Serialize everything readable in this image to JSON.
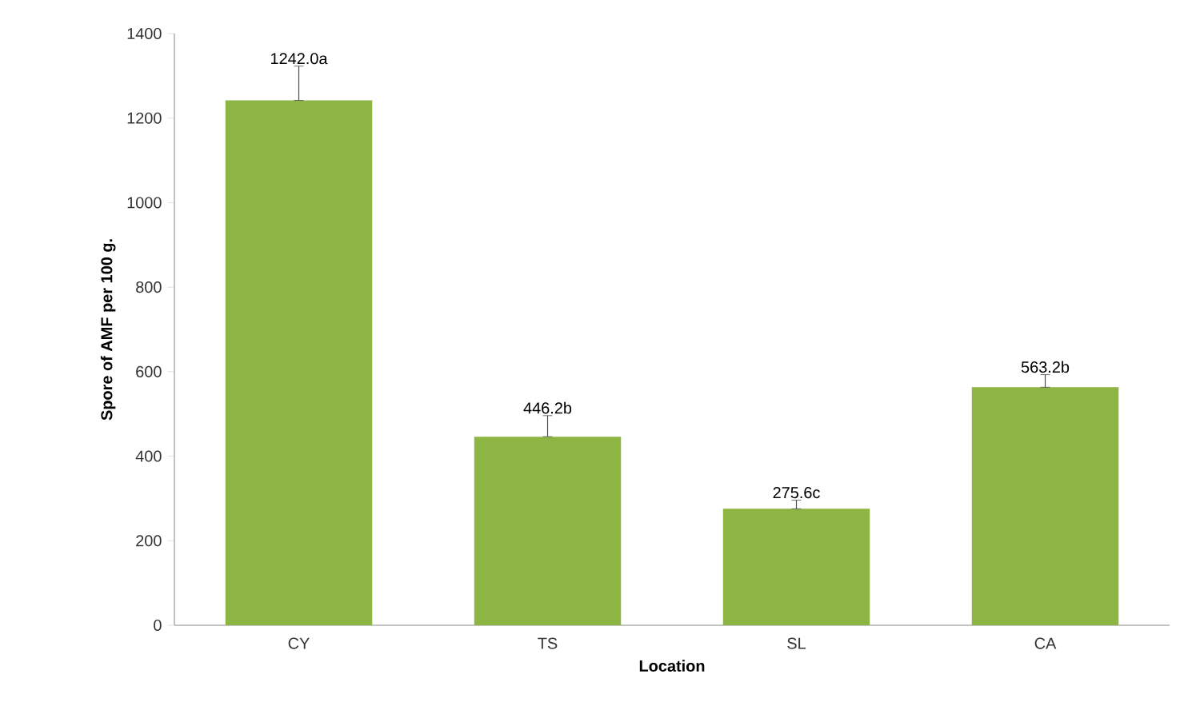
{
  "chart_data": {
    "type": "bar",
    "xlabel": "Location",
    "ylabel": "Spore of AMF per 100 g.",
    "categories": [
      "CY",
      "TS",
      "SL",
      "CA"
    ],
    "values": [
      1242.0,
      446.2,
      275.6,
      563.2
    ],
    "value_labels": [
      "1242.0a",
      "446.2b",
      "275.6c",
      "563.2b"
    ],
    "errors": [
      [
        1242.0,
        1323
      ],
      [
        446.2,
        496
      ],
      [
        275.6,
        296
      ],
      [
        563.2,
        593
      ]
    ],
    "color": "#8cb543",
    "ylim": [
      0,
      1400
    ],
    "yticks": [
      0,
      200,
      400,
      600,
      800,
      1000,
      1200,
      1400
    ]
  }
}
